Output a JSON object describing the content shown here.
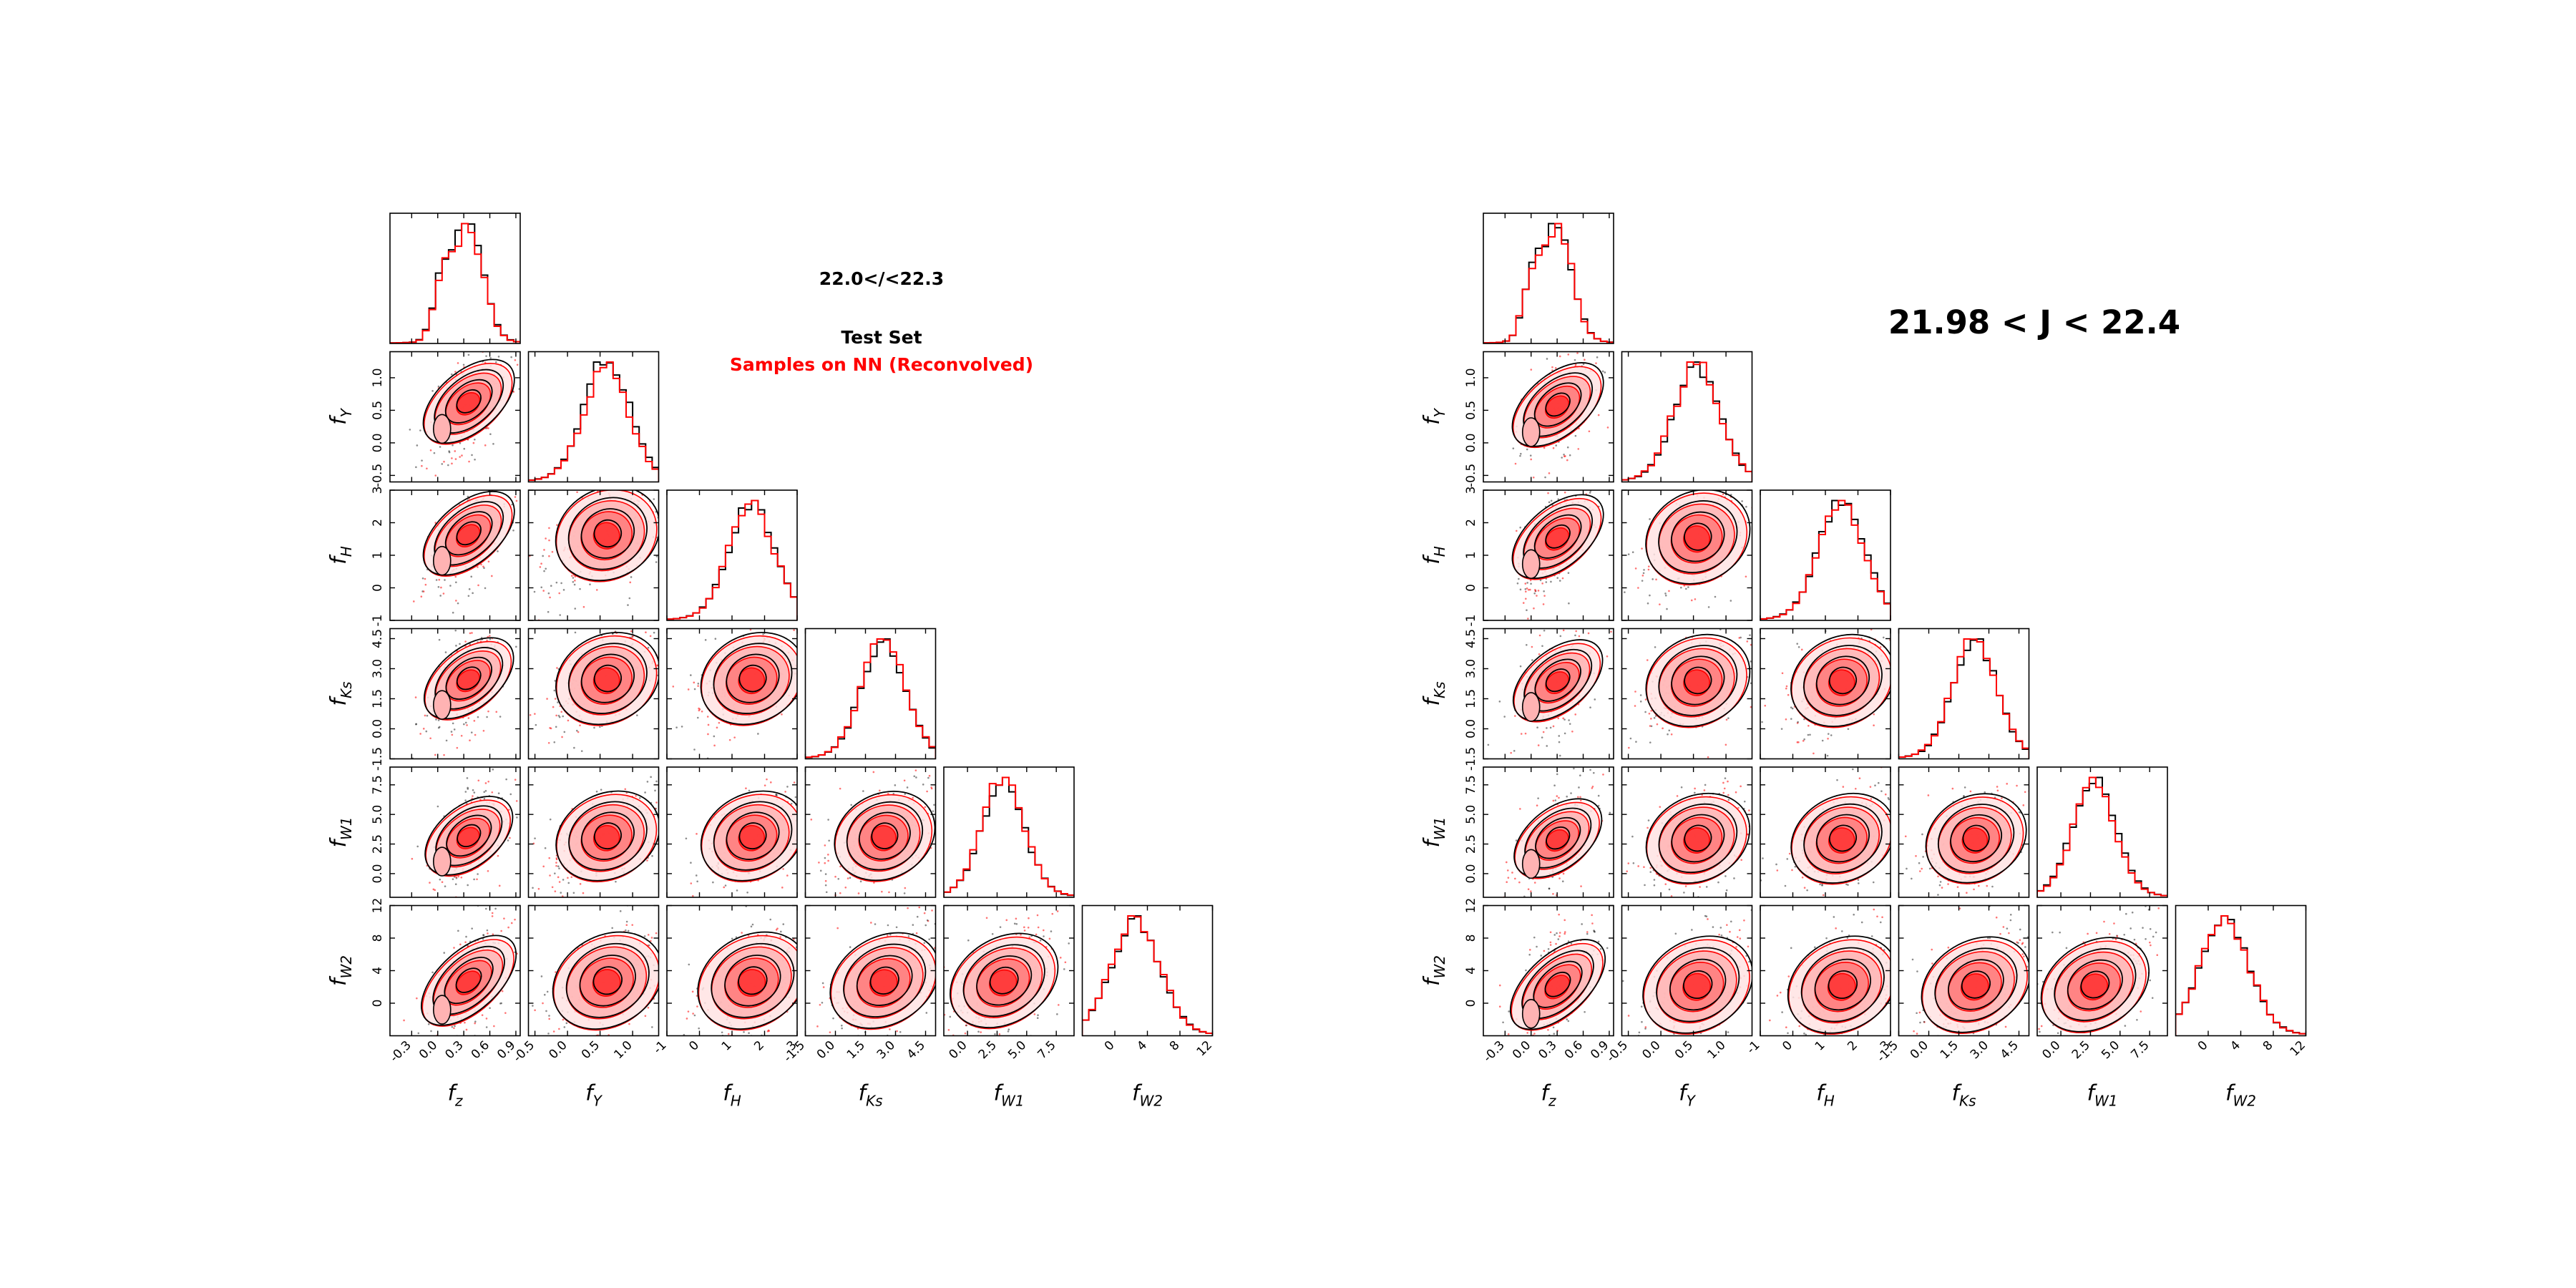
{
  "chart_data": [
    {
      "type": "corner",
      "annotations": [
        {
          "text": "22.0</<22.3",
          "color": "#000000"
        },
        {
          "text": "Test Set",
          "color": "#000000"
        },
        {
          "text": "Samples on NN (Reconvolved)",
          "color": "#ff0000"
        }
      ],
      "series": [
        {
          "name": "Test Set",
          "color": "#000000"
        },
        {
          "name": "Samples on NN (Reconvolved)",
          "color": "#ff0000"
        }
      ],
      "variables": [
        {
          "label": "f_z",
          "base": "f",
          "sub": "z",
          "range": [
            -0.55,
            0.95
          ],
          "ticks": [
            "-0.3",
            "0.0",
            "0.3",
            "0.6",
            "0.9"
          ],
          "tick_values": [
            -0.3,
            0.0,
            0.3,
            0.6,
            0.9
          ],
          "peak": 0.35,
          "sigma": 0.17,
          "bimodal": [
            0.05,
            0.35
          ]
        },
        {
          "label": "f_Y",
          "base": "f",
          "sub": "Y",
          "range": [
            -0.6,
            1.4
          ],
          "ticks": [
            "-0.5",
            "0.0",
            "0.5",
            "1.0"
          ],
          "tick_values": [
            -0.5,
            0.0,
            0.5,
            1.0
          ],
          "peak": 0.6,
          "sigma": 0.35
        },
        {
          "label": "f_H",
          "base": "f",
          "sub": "H",
          "range": [
            -1.0,
            3.0
          ],
          "ticks": [
            "-1",
            "0",
            "1",
            "2",
            "3"
          ],
          "tick_values": [
            -1,
            0,
            1,
            2,
            3
          ],
          "peak": 1.6,
          "sigma": 0.7
        },
        {
          "label": "f_Ks",
          "base": "f",
          "sub": "Ks",
          "range": [
            -1.5,
            5.0
          ],
          "ticks": [
            "-1.5",
            "0.0",
            "1.5",
            "3.0",
            "4.5"
          ],
          "tick_values": [
            -1.5,
            0.0,
            1.5,
            3.0,
            4.5
          ],
          "peak": 2.4,
          "sigma": 1.1
        },
        {
          "label": "f_W1",
          "base": "f",
          "sub": "W1",
          "range": [
            -2.0,
            9.0
          ],
          "ticks": [
            "0.0",
            "2.5",
            "5.0",
            "7.5"
          ],
          "tick_values": [
            0.0,
            2.5,
            5.0,
            7.5
          ],
          "peak": 3.0,
          "sigma": 1.8
        },
        {
          "label": "f_W2",
          "base": "f",
          "sub": "W2",
          "range": [
            -4.0,
            12.0
          ],
          "ticks": [
            "0",
            "4",
            "8",
            "12"
          ],
          "tick_values": [
            0,
            4,
            8,
            12
          ],
          "peak": 2.5,
          "sigma": 3.0
        }
      ]
    },
    {
      "type": "corner",
      "annotations": [
        {
          "text": "21.98 < J < 22.4",
          "color": "#000000"
        }
      ],
      "series": [
        {
          "name": "Test Set",
          "color": "#000000"
        },
        {
          "name": "Samples on NN (Reconvolved)",
          "color": "#ff0000"
        }
      ],
      "variables": [
        {
          "label": "f_z",
          "base": "f",
          "sub": "z",
          "range": [
            -0.55,
            0.95
          ],
          "ticks": [
            "-0.3",
            "0.0",
            "0.3",
            "0.6",
            "0.9"
          ],
          "tick_values": [
            -0.3,
            0.0,
            0.3,
            0.6,
            0.9
          ],
          "peak": 0.3,
          "sigma": 0.17,
          "bimodal": [
            0.0,
            0.3
          ]
        },
        {
          "label": "f_Y",
          "base": "f",
          "sub": "Y",
          "range": [
            -0.6,
            1.4
          ],
          "ticks": [
            "-0.5",
            "0.0",
            "0.5",
            "1.0"
          ],
          "tick_values": [
            -0.5,
            0.0,
            0.5,
            1.0
          ],
          "peak": 0.55,
          "sigma": 0.35
        },
        {
          "label": "f_H",
          "base": "f",
          "sub": "H",
          "range": [
            -1.0,
            3.0
          ],
          "ticks": [
            "-1",
            "0",
            "1",
            "2",
            "3"
          ],
          "tick_values": [
            -1,
            0,
            1,
            2,
            3
          ],
          "peak": 1.5,
          "sigma": 0.7
        },
        {
          "label": "f_Ks",
          "base": "f",
          "sub": "Ks",
          "range": [
            -1.5,
            5.0
          ],
          "ticks": [
            "-1.5",
            "0.0",
            "1.5",
            "3.0",
            "4.5"
          ],
          "tick_values": [
            -1.5,
            0.0,
            1.5,
            3.0,
            4.5
          ],
          "peak": 2.3,
          "sigma": 1.1
        },
        {
          "label": "f_W1",
          "base": "f",
          "sub": "W1",
          "range": [
            -2.0,
            9.0
          ],
          "ticks": [
            "0.0",
            "2.5",
            "5.0",
            "7.5"
          ],
          "tick_values": [
            0.0,
            2.5,
            5.0,
            7.5
          ],
          "peak": 2.8,
          "sigma": 1.8
        },
        {
          "label": "f_W2",
          "base": "f",
          "sub": "W2",
          "range": [
            -4.0,
            12.0
          ],
          "ticks": [
            "0",
            "4",
            "8",
            "12"
          ],
          "tick_values": [
            0,
            4,
            8,
            12
          ],
          "peak": 2.0,
          "sigma": 3.0
        }
      ]
    }
  ]
}
